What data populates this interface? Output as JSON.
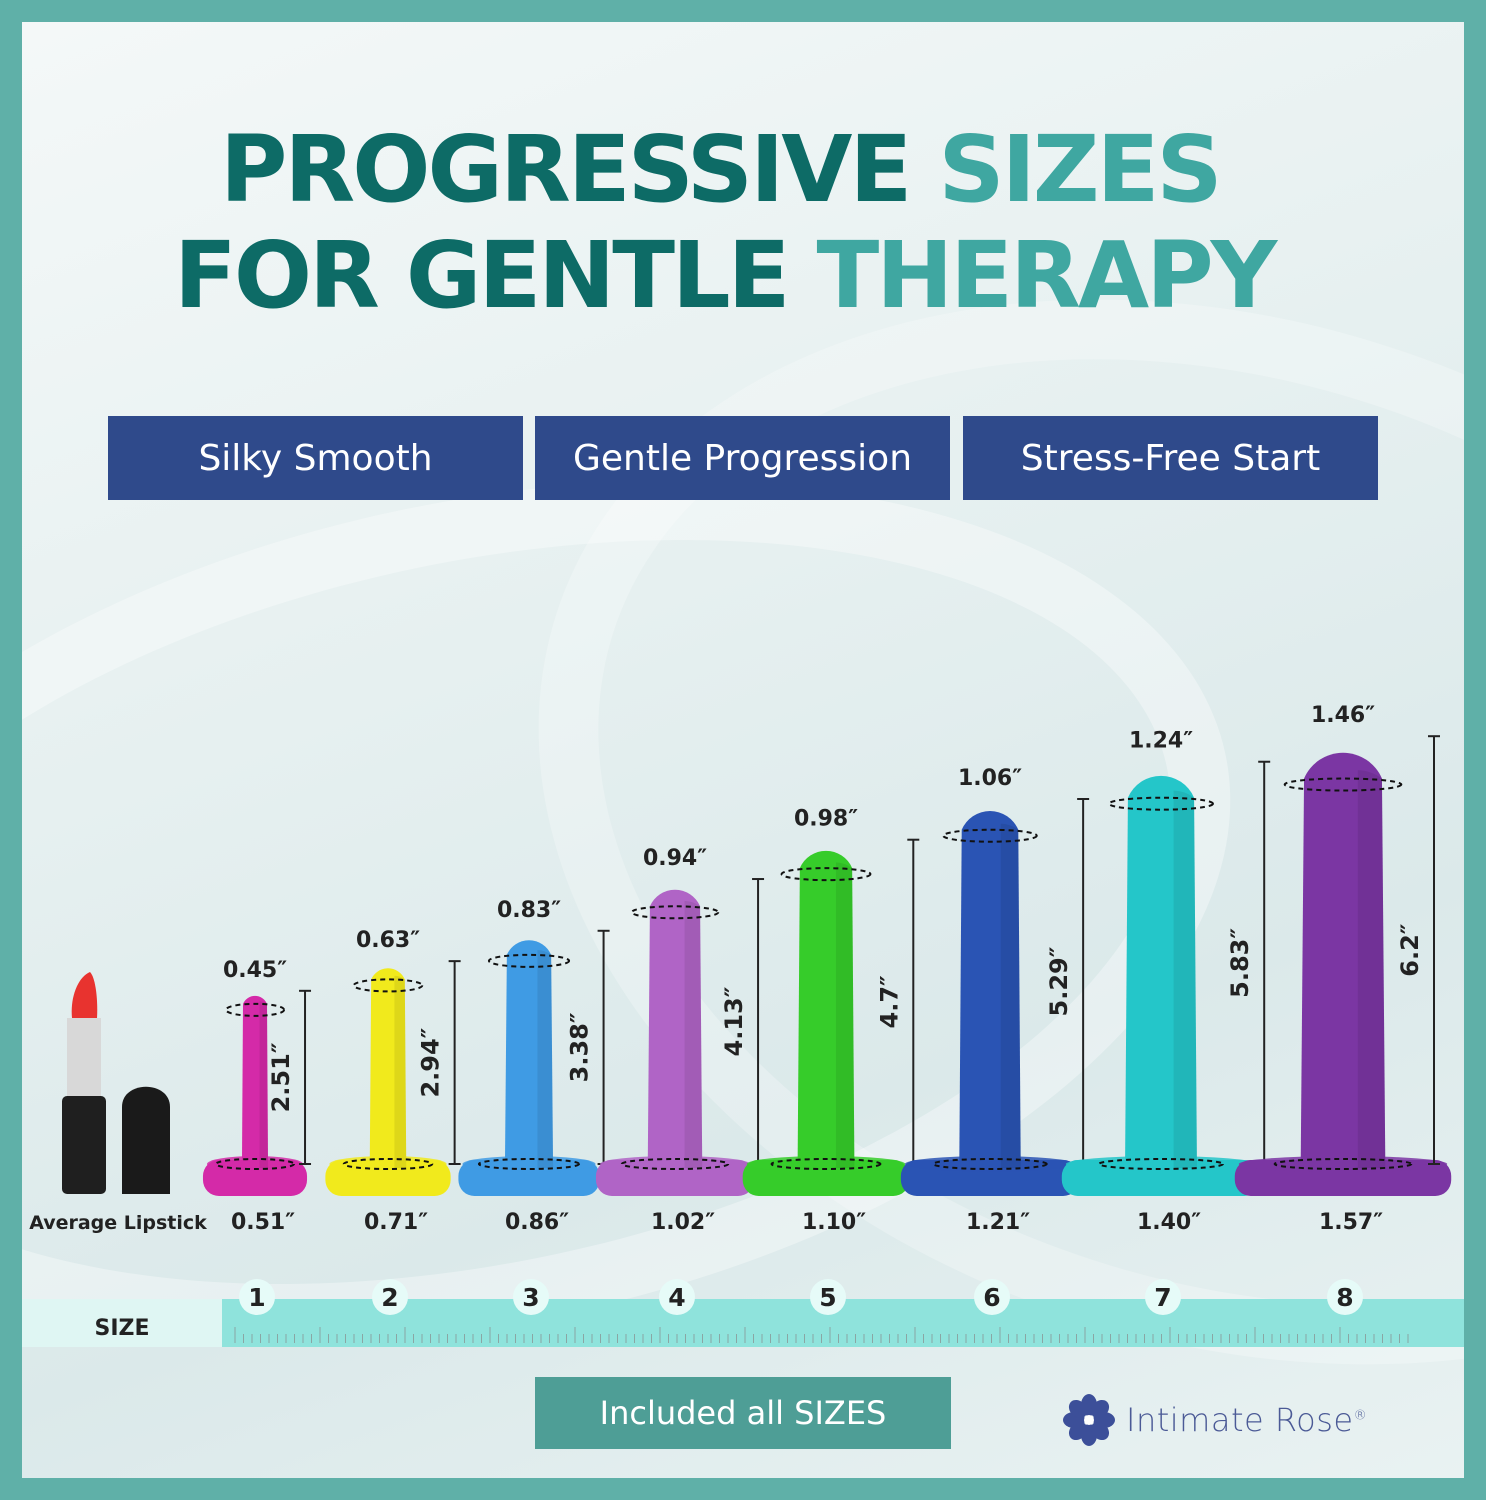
{
  "title": {
    "line1_part1": "PROGRESSIVE",
    "line1_part2": "SIZES",
    "line2_part1": "FOR GENTLE",
    "line2_part2": "THERAPY"
  },
  "features": [
    "Silky Smooth",
    "Gentle Progression",
    "Stress-Free Start"
  ],
  "lipstick_label": "Average Lipstick",
  "size_label": "SIZE",
  "dilators": [
    {
      "size": "1",
      "tip": "0.45″",
      "length": "2.51″",
      "base": "0.51″",
      "color": "#d42aa8"
    },
    {
      "size": "2",
      "tip": "0.63″",
      "length": "2.94″",
      "base": "0.71″",
      "color": "#f1ea1c"
    },
    {
      "size": "3",
      "tip": "0.83″",
      "length": "3.38″",
      "base": "0.86″",
      "color": "#3f9be4"
    },
    {
      "size": "4",
      "tip": "0.94″",
      "length": "4.13″",
      "base": "1.02″",
      "color": "#b064c6"
    },
    {
      "size": "5",
      "tip": "0.98″",
      "length": "4.7″",
      "base": "1.10″",
      "color": "#36cc2a"
    },
    {
      "size": "6",
      "tip": "1.06″",
      "length": "5.29″",
      "base": "1.21″",
      "color": "#2a54b4"
    },
    {
      "size": "7",
      "tip": "1.24″",
      "length": "5.83″",
      "base": "1.40″",
      "color": "#24c6c9"
    },
    {
      "size": "8",
      "tip": "1.46″",
      "length": "6.2″",
      "base": "1.57″",
      "color": "#7b36a3"
    }
  ],
  "cta": "Included all SIZES",
  "brand": {
    "name": "Intimate Rose",
    "mark": "®"
  },
  "colors": {
    "frame": "#5fb0a8",
    "title_dark": "#0d6b66",
    "title_light": "#3fa7a1",
    "pill": "#2f4a8b",
    "cta": "#4e9e96",
    "ruler": "#8fe3dc"
  }
}
